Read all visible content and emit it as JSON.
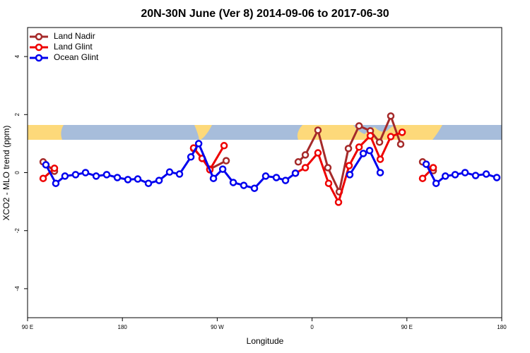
{
  "chart_data": {
    "type": "line",
    "title": "20N-30N June (Ver 8)   2014-09-06 to 2017-06-30",
    "x_label": "Longitude",
    "y_label": "XCO2 - MLO trend (ppm)",
    "xlim": [
      90,
      540
    ],
    "xticks": [
      {
        "value": 90,
        "label": "90 E"
      },
      {
        "value": 180,
        "label": "180"
      },
      {
        "value": 270,
        "label": "90 W"
      },
      {
        "value": 360,
        "label": "0"
      },
      {
        "value": 450,
        "label": "90 E"
      },
      {
        "value": 540,
        "label": "180"
      }
    ],
    "ylim": [
      -5,
      5
    ],
    "yticks": [
      -4,
      -2,
      0,
      2,
      4
    ],
    "legend": "top-left",
    "series": [
      {
        "name": "Land Nadir",
        "color": "#a52a2a",
        "x": [
          104.8,
          115.5,
          null,
          247.6,
          255.7,
          263,
          278.5,
          null,
          346.9,
          353.6,
          365.6,
          375,
          385.8,
          394.5,
          404.6,
          415.3,
          424,
          434.7,
          444.1,
          null,
          464.9,
          475
        ],
        "values": [
          0.37,
          0.05,
          null,
          0.83,
          0.49,
          0.12,
          0.41,
          null,
          0.37,
          0.61,
          1.46,
          0.17,
          -0.66,
          0.83,
          1.61,
          1.44,
          1.05,
          1.95,
          0.98,
          null,
          0.37,
          0.07
        ]
      },
      {
        "name": "Land Glint",
        "color": "#ee0000",
        "x": [
          104.8,
          115.5,
          null,
          247.6,
          255.7,
          263,
          276.5,
          null,
          344.2,
          353.6,
          365.6,
          375.7,
          385.1,
          395.2,
          404.6,
          415.3,
          424.7,
          434.7,
          445.5,
          null,
          464.9,
          475
        ],
        "values": [
          -0.2,
          0.15,
          null,
          0.85,
          0.49,
          0.1,
          0.93,
          null,
          -0.02,
          0.17,
          0.68,
          -0.37,
          -1.02,
          0.24,
          0.88,
          1.27,
          0.46,
          1.24,
          1.39,
          null,
          -0.2,
          0.17
        ]
      },
      {
        "name": "Ocean Glint",
        "color": "#0000ee",
        "x": [
          107.4,
          116.8,
          125.5,
          135.6,
          145,
          155.1,
          165.1,
          175.2,
          185.2,
          194.6,
          204.7,
          214.8,
          224.8,
          234.2,
          245,
          252.4,
          266.4,
          275.2,
          285.2,
          295.2,
          305.3,
          316,
          326.1,
          334.8,
          344.2,
          null,
          395.8,
          408.6,
          414.6,
          424.7,
          null,
          468.3,
          477.7,
          486.5,
          495.8,
          505.2,
          515.2,
          525.3,
          535.3
        ],
        "values": [
          0.27,
          -0.37,
          -0.12,
          -0.07,
          0,
          -0.12,
          -0.07,
          -0.17,
          -0.24,
          -0.22,
          -0.37,
          -0.27,
          0.02,
          -0.05,
          0.54,
          1.0,
          -0.2,
          0.12,
          -0.34,
          -0.44,
          -0.54,
          -0.12,
          -0.17,
          -0.27,
          -0.02,
          null,
          -0.07,
          0.66,
          0.76,
          0,
          null,
          0.29,
          -0.37,
          -0.12,
          -0.07,
          0,
          -0.1,
          -0.05,
          -0.17
        ]
      }
    ]
  }
}
